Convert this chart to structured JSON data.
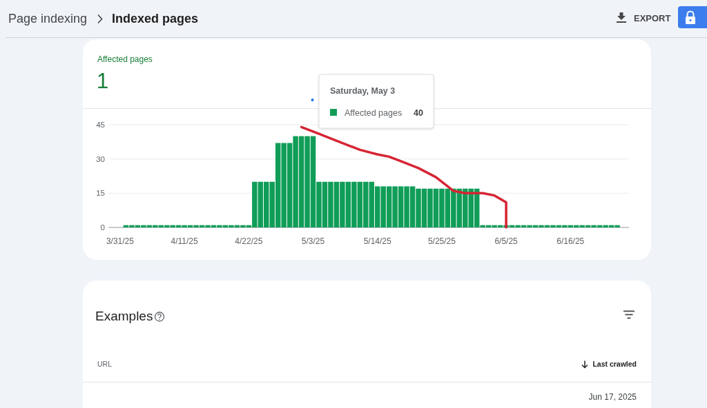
{
  "chart_data": {
    "type": "bar",
    "title": "Indexed pages",
    "x": [
      "2025-04-01",
      "2025-04-02",
      "2025-04-03",
      "2025-04-04",
      "2025-04-05",
      "2025-04-06",
      "2025-04-07",
      "2025-04-08",
      "2025-04-09",
      "2025-04-10",
      "2025-04-11",
      "2025-04-12",
      "2025-04-13",
      "2025-04-14",
      "2025-04-15",
      "2025-04-16",
      "2025-04-17",
      "2025-04-18",
      "2025-04-19",
      "2025-04-20",
      "2025-04-21",
      "2025-04-22",
      "2025-04-23",
      "2025-04-24",
      "2025-04-25",
      "2025-04-26",
      "2025-04-27",
      "2025-04-28",
      "2025-04-29",
      "2025-04-30",
      "2025-05-01",
      "2025-05-02",
      "2025-05-03",
      "2025-05-04",
      "2025-05-05",
      "2025-05-06",
      "2025-05-07",
      "2025-05-08",
      "2025-05-09",
      "2025-05-10",
      "2025-05-11",
      "2025-05-12",
      "2025-05-13",
      "2025-05-14",
      "2025-05-15",
      "2025-05-16",
      "2025-05-17",
      "2025-05-18",
      "2025-05-19",
      "2025-05-20",
      "2025-05-21",
      "2025-05-22",
      "2025-05-23",
      "2025-05-24",
      "2025-05-25",
      "2025-05-26",
      "2025-05-27",
      "2025-05-28",
      "2025-05-29",
      "2025-05-30",
      "2025-05-31",
      "2025-06-01",
      "2025-06-02",
      "2025-06-03",
      "2025-06-04",
      "2025-06-05",
      "2025-06-06",
      "2025-06-07",
      "2025-06-08",
      "2025-06-09",
      "2025-06-10",
      "2025-06-11",
      "2025-06-12",
      "2025-06-13",
      "2025-06-14",
      "2025-06-15",
      "2025-06-16",
      "2025-06-17",
      "2025-06-18",
      "2025-06-19",
      "2025-06-20",
      "2025-06-21",
      "2025-06-22",
      "2025-06-23",
      "2025-06-24"
    ],
    "series": [
      {
        "name": "Affected pages",
        "color": "#109d58",
        "values": [
          1,
          1,
          1,
          1,
          1,
          1,
          1,
          1,
          1,
          1,
          1,
          1,
          1,
          1,
          1,
          1,
          1,
          1,
          1,
          1,
          1,
          1,
          20,
          20,
          20,
          20,
          37,
          37,
          37,
          40,
          40,
          40,
          40,
          20,
          20,
          20,
          20,
          20,
          20,
          20,
          20,
          20,
          20,
          18,
          18,
          18,
          18,
          18,
          18,
          18,
          17,
          17,
          17,
          17,
          17,
          17,
          17,
          17,
          17,
          17,
          17,
          1,
          1,
          1,
          1,
          1,
          1,
          1,
          1,
          1,
          1,
          1,
          1,
          1,
          1,
          1,
          1,
          1,
          1,
          1,
          1,
          1,
          1,
          1,
          1
        ]
      },
      {
        "type": "line",
        "color": "#d62433",
        "x": [
          "2025-05-01",
          "2025-05-04",
          "2025-05-06",
          "2025-05-09",
          "2025-05-11",
          "2025-05-14",
          "2025-05-16",
          "2025-05-18",
          "2025-05-21",
          "2025-05-24",
          "2025-05-26",
          "2025-05-27",
          "2025-05-29",
          "2025-06-01",
          "2025-06-03",
          "2025-06-05",
          "2025-06-05"
        ],
        "values": [
          44,
          41,
          39,
          36,
          34,
          32,
          31,
          29,
          26,
          22,
          18,
          16,
          15,
          15,
          14,
          11,
          0
        ]
      }
    ],
    "xlim": [
      "2025-03-29",
      "2025-06-26"
    ],
    "xticks": [
      {
        "value": "2025-03-31",
        "label": "3/31/25"
      },
      {
        "value": "2025-04-11",
        "label": "4/11/25"
      },
      {
        "value": "2025-04-22",
        "label": "4/22/25"
      },
      {
        "value": "2025-05-03",
        "label": "5/3/25"
      },
      {
        "value": "2025-05-14",
        "label": "5/14/25"
      },
      {
        "value": "2025-05-25",
        "label": "5/25/25"
      },
      {
        "value": "2025-06-05",
        "label": "6/5/25"
      },
      {
        "value": "2025-06-16",
        "label": "6/16/25"
      }
    ],
    "ylim": [
      0,
      45
    ],
    "yticks": [
      0,
      15,
      30,
      45
    ],
    "grid": "y",
    "legend": "top",
    "legend_title": "Saturday, May 3",
    "annotations": [
      "Page indexing",
      "EXPORT",
      "Affected pages",
      "1",
      "Examples",
      "URL",
      "Last crawled",
      "Jun 17, 2025",
      "40"
    ]
  }
}
